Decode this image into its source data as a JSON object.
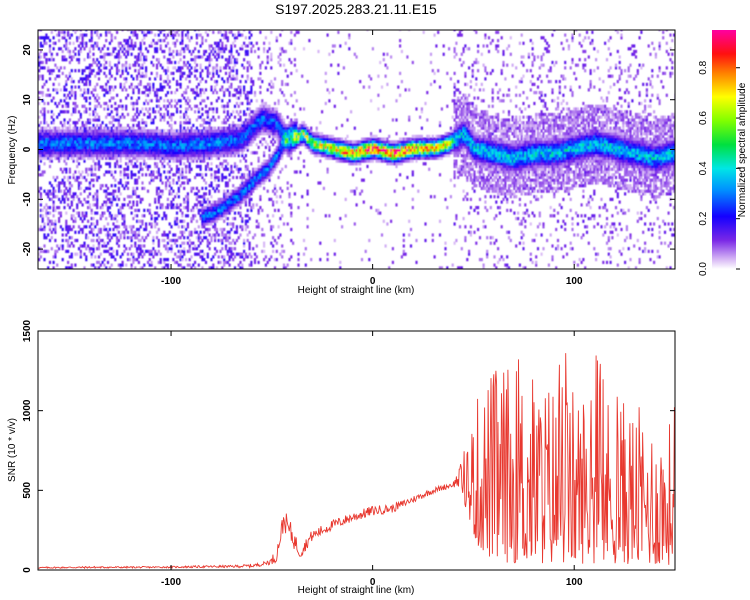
{
  "title": "S197.2025.283.21.11.E15",
  "colors": {
    "snr_line": "#e8382f",
    "background": "#ffffff"
  },
  "chart_data": [
    {
      "type": "heatmap",
      "name": "spectrogram",
      "xlabel": "Height of straight line (km)",
      "ylabel": "Frequency (Hz)",
      "xlim": [
        -166,
        150
      ],
      "ylim": [
        -24,
        24
      ],
      "xticks": [
        -100,
        0,
        100
      ],
      "yticks": [
        -20,
        -10,
        0,
        10,
        20
      ],
      "colorbar": {
        "label": "Normalized spectral amplitude",
        "ticks": [
          "0.0",
          "0.2",
          "0.4",
          "0.6",
          "0.8"
        ],
        "tick_values": [
          0.0,
          0.2,
          0.4,
          0.6,
          0.8
        ],
        "range": [
          0,
          0.95
        ],
        "colormap": "rainbow"
      },
      "tracks": [
        {
          "x": [
            -130,
            -115,
            -100,
            -80,
            -65,
            -55,
            -48,
            -42,
            -35,
            -30,
            -20,
            -10,
            0,
            10,
            20,
            30,
            38,
            45,
            50,
            60,
            70,
            80,
            90,
            100,
            110,
            120,
            130,
            140,
            148
          ],
          "y": [
            1,
            1,
            0.5,
            1,
            2,
            6,
            5,
            1,
            3,
            1,
            0,
            -1,
            0,
            -1,
            0,
            0,
            1,
            3,
            0,
            -1,
            -2,
            -1,
            -1,
            0,
            1,
            0,
            -1,
            -2,
            -1
          ]
        },
        {
          "x": [
            -85,
            -75,
            -65,
            -58,
            -52,
            -47,
            -42,
            -38
          ],
          "y": [
            -14,
            -12,
            -9,
            -6,
            -4,
            -1,
            3,
            4
          ]
        }
      ]
    },
    {
      "type": "line",
      "name": "snr",
      "xlabel": "Height of straight line (km)",
      "ylabel": "SNR (10 * v/v)",
      "xlim": [
        -166,
        150
      ],
      "ylim": [
        0,
        1500
      ],
      "xticks": [
        -100,
        0,
        100
      ],
      "yticks": [
        0,
        500,
        1000,
        1500
      ],
      "envelope": {
        "x": [
          -166,
          -140,
          -110,
          -90,
          -70,
          -55,
          -48,
          -44,
          -40,
          -36,
          -30,
          -20,
          -10,
          0,
          10,
          20,
          30,
          40,
          44,
          48,
          52,
          60,
          70,
          80,
          90,
          100,
          110,
          120,
          130,
          140,
          150
        ],
        "y": [
          25,
          30,
          28,
          35,
          40,
          60,
          120,
          400,
          300,
          160,
          260,
          320,
          370,
          410,
          420,
          470,
          520,
          560,
          700,
          900,
          1100,
          1300,
          1300,
          1250,
          1200,
          1150,
          1150,
          1100,
          1050,
          950,
          950
        ]
      },
      "base": {
        "x": [
          -166,
          -60,
          -48,
          -44,
          -40,
          -36,
          -30,
          -20,
          -10,
          0,
          10,
          20,
          30,
          40,
          44,
          48,
          52,
          60,
          80,
          100,
          120,
          150
        ],
        "y": [
          10,
          15,
          40,
          250,
          150,
          70,
          180,
          250,
          300,
          340,
          360,
          420,
          480,
          520,
          500,
          300,
          150,
          50,
          40,
          40,
          40,
          30
        ]
      }
    }
  ]
}
